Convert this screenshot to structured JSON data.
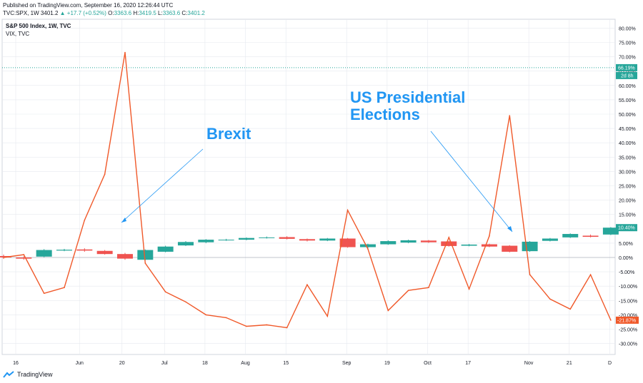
{
  "header": {
    "published": "Published on TradingView.com, September 16, 2020 12:26:44 UTC",
    "symbol": "TVC:SPX, 1W",
    "last": "3401.2",
    "arrow": "▲",
    "change": "+17.7 (+0.52%)",
    "o_label": "O:",
    "o_value": "3363.6",
    "h_label": "H:",
    "h_value": "3419.5",
    "l_label": "L:",
    "l_value": "3363.6",
    "c_label": "C:",
    "c_value": "3401.2"
  },
  "legend": {
    "line1": "S&P 500 Index, 1W, TVC",
    "line2": "VIX, TVC"
  },
  "annotations": {
    "brexit": "Brexit",
    "us_elections_line1": "US Presidential",
    "us_elections_line2": "Elections"
  },
  "price_tags": {
    "top_value": "66.19%",
    "top_sub": "2d 8h",
    "spx_value": "10.40%",
    "vix_value": "-21.87%"
  },
  "footer": {
    "brand": "TradingView"
  },
  "colors": {
    "up": "#26a69a",
    "down": "#ef5350",
    "vix_line": "#f0592a",
    "annotation": "#2196f3",
    "grid": "#e6e9ef"
  },
  "chart_data": {
    "type": "line",
    "y_unit": "%",
    "ylim": [
      -35,
      82
    ],
    "y_ticks": [
      "80.00%",
      "75.00%",
      "70.00%",
      "65.00%",
      "60.00%",
      "55.00%",
      "50.00%",
      "45.00%",
      "40.00%",
      "35.00%",
      "30.00%",
      "25.00%",
      "20.00%",
      "15.00%",
      "10.00%",
      "5.00%",
      "0.00%",
      "-5.00%",
      "-10.00%",
      "-15.00%",
      "-20.00%",
      "-25.00%",
      "-30.00%"
    ],
    "x_ticks": [
      "16",
      "Jun",
      "20",
      "Jul",
      "18",
      "Aug",
      "15",
      "Sep",
      "19",
      "Oct",
      "17",
      "Nov",
      "21",
      "D"
    ],
    "series": [
      {
        "name": "VIX, TVC",
        "kind": "line",
        "values": [
          0,
          1,
          -12.5,
          -10.5,
          13,
          29,
          71.5,
          -2,
          -12,
          -15.5,
          -20,
          -21,
          -24,
          -23.5,
          -24.5,
          -9.5,
          -20.5,
          16.5,
          3,
          -18.5,
          -11.5,
          -10.5,
          7,
          -11,
          7.5,
          49.5,
          -6,
          -14.5,
          -18,
          -6,
          -21.87
        ]
      },
      {
        "name": "S&P 500 Index, 1W, TVC",
        "kind": "candlestick",
        "candles": [
          {
            "o": 0.5,
            "c": 0.0,
            "h": 1.0,
            "l": -0.5
          },
          {
            "o": 0.0,
            "c": -0.4,
            "h": 0.4,
            "l": -0.8
          },
          {
            "o": 0.3,
            "c": 2.6,
            "h": 2.9,
            "l": 0.1
          },
          {
            "o": 2.4,
            "c": 2.7,
            "h": 3.0,
            "l": 2.2
          },
          {
            "o": 2.8,
            "c": 2.4,
            "h": 3.2,
            "l": 2.0
          },
          {
            "o": 2.3,
            "c": 1.2,
            "h": 2.6,
            "l": 1.0
          },
          {
            "o": 1.2,
            "c": -0.4,
            "h": 1.6,
            "l": -0.8
          },
          {
            "o": -0.8,
            "c": 2.6,
            "h": 2.8,
            "l": -1.0
          },
          {
            "o": 2.0,
            "c": 3.8,
            "h": 4.1,
            "l": 1.8
          },
          {
            "o": 4.2,
            "c": 5.4,
            "h": 5.7,
            "l": 4.0
          },
          {
            "o": 5.3,
            "c": 6.2,
            "h": 6.4,
            "l": 5.0
          },
          {
            "o": 6.0,
            "c": 6.2,
            "h": 6.5,
            "l": 5.8
          },
          {
            "o": 6.2,
            "c": 6.8,
            "h": 7.0,
            "l": 6.0
          },
          {
            "o": 6.8,
            "c": 7.0,
            "h": 7.3,
            "l": 6.6
          },
          {
            "o": 7.1,
            "c": 6.5,
            "h": 7.4,
            "l": 6.3
          },
          {
            "o": 6.4,
            "c": 5.9,
            "h": 6.6,
            "l": 5.6
          },
          {
            "o": 5.9,
            "c": 6.6,
            "h": 6.8,
            "l": 5.7
          },
          {
            "o": 6.6,
            "c": 3.6,
            "h": 6.8,
            "l": 3.4
          },
          {
            "o": 3.6,
            "c": 4.6,
            "h": 4.8,
            "l": 3.3
          },
          {
            "o": 4.6,
            "c": 5.7,
            "h": 6.0,
            "l": 4.4
          },
          {
            "o": 5.2,
            "c": 6.0,
            "h": 6.2,
            "l": 5.0
          },
          {
            "o": 5.9,
            "c": 5.3,
            "h": 6.1,
            "l": 5.1
          },
          {
            "o": 5.6,
            "c": 4.0,
            "h": 5.8,
            "l": 3.8
          },
          {
            "o": 4.1,
            "c": 4.5,
            "h": 4.7,
            "l": 3.9
          },
          {
            "o": 4.6,
            "c": 3.8,
            "h": 4.8,
            "l": 3.6
          },
          {
            "o": 4.1,
            "c": 2.0,
            "h": 4.3,
            "l": 1.8
          },
          {
            "o": 2.2,
            "c": 5.5,
            "h": 5.7,
            "l": 2.0
          },
          {
            "o": 5.8,
            "c": 6.6,
            "h": 6.8,
            "l": 5.6
          },
          {
            "o": 7.0,
            "c": 8.2,
            "h": 8.4,
            "l": 6.8
          },
          {
            "o": 7.6,
            "c": 7.2,
            "h": 8.0,
            "l": 7.0
          },
          {
            "o": 8.0,
            "c": 10.4,
            "h": 10.6,
            "l": 7.8
          }
        ]
      }
    ],
    "reference_line": 66.19,
    "grid": true,
    "legend_position": "top-left"
  }
}
